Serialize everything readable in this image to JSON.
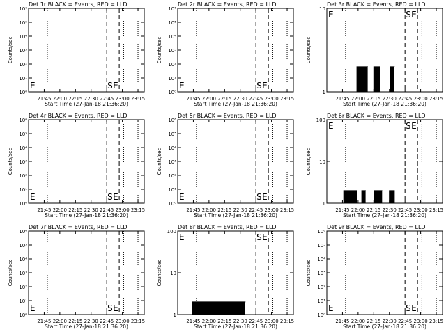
{
  "chart_data": [
    {
      "type": "line",
      "title": "Det 1r BLACK = Events, RED = LLD",
      "xlabel": "Start Time (27-Jan-18 21:36:20)",
      "ylabel": "Counts/sec",
      "scale": "log",
      "ylim": [
        1,
        1000000
      ],
      "yticks": [
        "10⁶",
        "10⁵",
        "10⁴",
        "10³",
        "10²",
        "10¹",
        "10⁰"
      ],
      "xticks": [
        "21:45",
        "22:00",
        "22:15",
        "22:30",
        "22:45",
        "23:00",
        "23:15"
      ],
      "markers": {
        "start": "S",
        "end": "E",
        "left": "E"
      },
      "series": []
    },
    {
      "type": "line",
      "title": "Det 2r BLACK = Events, RED = LLD",
      "xlabel": "Start Time (27-Jan-18 21:36:20)",
      "ylabel": "Counts/sec",
      "scale": "log",
      "ylim": [
        1,
        1000000
      ],
      "yticks": [
        "10⁶",
        "10⁵",
        "10⁴",
        "10³",
        "10²",
        "10¹",
        "10⁰"
      ],
      "xticks": [
        "21:45",
        "22:00",
        "22:15",
        "22:30",
        "22:45",
        "23:00",
        "23:15"
      ],
      "markers": {
        "start": "S",
        "end": "E",
        "left": "E"
      },
      "series": []
    },
    {
      "type": "line",
      "title": "Det 3r BLACK = Events, RED = LLD",
      "xlabel": "Start Time (27-Jan-18 21:36:20)",
      "ylabel": "Counts/sec",
      "scale": "log",
      "ylim": [
        1,
        10
      ],
      "yticks": [
        "10",
        "1"
      ],
      "xticks": [
        "21:45",
        "22:00",
        "22:15",
        "22:30",
        "22:45",
        "23:00",
        "23:15"
      ],
      "markers": {
        "start": "S",
        "end": "E",
        "left": "E"
      },
      "series": [
        {
          "segments": [
            [
              21.98,
              22.15
            ],
            [
              22.25,
              22.35
            ],
            [
              22.52,
              22.58
            ]
          ],
          "peak": 2
        }
      ]
    },
    {
      "type": "line",
      "title": "Det 4r BLACK = Events, RED = LLD",
      "xlabel": "Start Time (27-Jan-18 21:36:20)",
      "ylabel": "Counts/sec",
      "scale": "log",
      "ylim": [
        1,
        1000000
      ],
      "yticks": [
        "10⁶",
        "10⁵",
        "10⁴",
        "10³",
        "10²",
        "10¹",
        "10⁰"
      ],
      "xticks": [
        "21:45",
        "22:00",
        "22:15",
        "22:30",
        "22:45",
        "23:00",
        "23:15"
      ],
      "markers": {
        "start": "S",
        "end": "E",
        "left": "E"
      },
      "series": []
    },
    {
      "type": "line",
      "title": "Det 5r BLACK = Events, RED = LLD",
      "xlabel": "Start Time (27-Jan-18 21:36:20)",
      "ylabel": "Counts/sec",
      "scale": "log",
      "ylim": [
        1,
        1000000
      ],
      "yticks": [
        "10⁶",
        "10⁵",
        "10⁴",
        "10³",
        "10²",
        "10¹",
        "10⁰"
      ],
      "xticks": [
        "21:45",
        "22:00",
        "22:15",
        "22:30",
        "22:45",
        "23:00",
        "23:15"
      ],
      "markers": {
        "start": "S",
        "end": "E",
        "left": "E"
      },
      "series": []
    },
    {
      "type": "line",
      "title": "Det 6r BLACK = Events, RED = LLD",
      "xlabel": "Start Time (27-Jan-18 21:36:20)",
      "ylabel": "Counts/sec",
      "scale": "log",
      "ylim": [
        1,
        100
      ],
      "yticks": [
        "100",
        "10",
        "1"
      ],
      "xticks": [
        "21:45",
        "22:00",
        "22:15",
        "22:30",
        "22:45",
        "23:00",
        "23:15"
      ],
      "markers": {
        "start": "S",
        "end": "E",
        "left": "E"
      },
      "series": [
        {
          "segments": [
            [
              21.77,
              21.98
            ],
            [
              22.05,
              22.12
            ],
            [
              22.25,
              22.38
            ],
            [
              22.5,
              22.58
            ]
          ],
          "peak": 2
        }
      ]
    },
    {
      "type": "line",
      "title": "Det 7r BLACK = Events, RED = LLD",
      "xlabel": "Start Time (27-Jan-18 21:36:20)",
      "ylabel": "Counts/sec",
      "scale": "log",
      "ylim": [
        1,
        1000000
      ],
      "yticks": [
        "10⁶",
        "10⁵",
        "10⁴",
        "10³",
        "10²",
        "10¹",
        "10⁰"
      ],
      "xticks": [
        "21:45",
        "22:00",
        "22:15",
        "22:30",
        "22:45",
        "23:00",
        "23:15"
      ],
      "markers": {
        "start": "S",
        "end": "E",
        "left": "E"
      },
      "series": []
    },
    {
      "type": "line",
      "title": "Det 8r BLACK = Events, RED = LLD",
      "xlabel": "Start Time (27-Jan-18 21:36:20)",
      "ylabel": "Counts/sec",
      "scale": "log",
      "ylim": [
        1,
        100
      ],
      "yticks": [
        "100",
        "10",
        "1"
      ],
      "xticks": [
        "21:45",
        "22:00",
        "22:15",
        "22:30",
        "22:45",
        "23:00",
        "23:15"
      ],
      "markers": {
        "start": "S",
        "end": "E",
        "left": "E"
      },
      "series": [
        {
          "segments": [
            [
              21.72,
              22.58
            ]
          ],
          "peak": 2
        }
      ]
    },
    {
      "type": "line",
      "title": "Det 9r BLACK = Events, RED = LLD",
      "xlabel": "Start Time (27-Jan-18 21:36:20)",
      "ylabel": "Counts/sec",
      "scale": "log",
      "ylim": [
        1,
        1000000
      ],
      "yticks": [
        "10⁶",
        "10⁵",
        "10⁴",
        "10³",
        "10²",
        "10¹",
        "10⁰"
      ],
      "xticks": [
        "21:45",
        "22:00",
        "22:15",
        "22:30",
        "22:45",
        "23:00",
        "23:15"
      ],
      "markers": {
        "start": "S",
        "end": "E",
        "left": "E"
      },
      "series": []
    }
  ],
  "colors": {
    "events": "#000000",
    "lld": "#ff0000",
    "background": "#ffffff"
  }
}
